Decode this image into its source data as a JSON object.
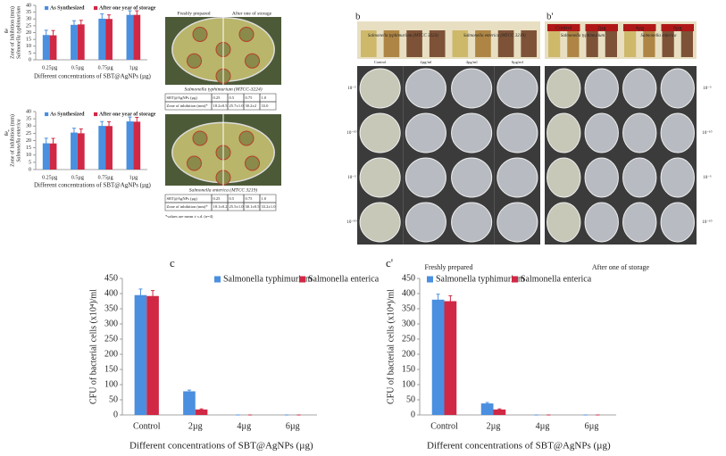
{
  "chart_data": [
    {
      "type": "bar",
      "panel": "a",
      "ylabel_lines": [
        "Zone of Inhibition (mm)",
        "Salmonella typhimurium"
      ],
      "xlabel": "Different concentrations of SBT@AgNPs (µg)",
      "categories": [
        "0.25µg",
        "0.5µg",
        "0.75µg",
        "1µg"
      ],
      "series": [
        {
          "name": "As Synthesized",
          "color": "#4a8fe0",
          "values": [
            18.2,
            25.7,
            30.2,
            33.0
          ],
          "errors": [
            3.5,
            3,
            3.5,
            3
          ]
        },
        {
          "name": "After one year of storage",
          "color": "#d02845",
          "values": [
            18,
            26,
            30,
            33
          ],
          "errors": [
            3.5,
            3,
            3,
            3
          ]
        }
      ],
      "ylim": [
        0,
        40
      ],
      "yticks": [
        0,
        5,
        10,
        15,
        20,
        25,
        30,
        35,
        40
      ]
    },
    {
      "type": "bar",
      "panel": "a'",
      "ylabel_lines": [
        "Zone of Inhibition (mm)",
        "Salmonella enterica"
      ],
      "xlabel": "Different concentrations of SBT@AgNPs (µg)",
      "categories": [
        "0.25µg",
        "0.5µg",
        "0.75µg",
        "1µg"
      ],
      "series": [
        {
          "name": "As Synthesized",
          "color": "#4a8fe0",
          "values": [
            18.1,
            25.5,
            30.1,
            33.2
          ],
          "errors": [
            3.5,
            3,
            3,
            3
          ]
        },
        {
          "name": "After one year of storage",
          "color": "#d02845",
          "values": [
            18,
            25,
            30,
            33
          ],
          "errors": [
            3.5,
            3,
            3,
            3
          ]
        }
      ],
      "ylim": [
        0,
        40
      ],
      "yticks": [
        0,
        5,
        10,
        15,
        20,
        25,
        30,
        35,
        40
      ]
    },
    {
      "type": "bar",
      "panel": "c",
      "ylabel_lines": [
        "CFU of bacterial cells (x10⁴)/ml"
      ],
      "xlabel": "Different concentrations of SBT@AgNPs (µg)",
      "categories": [
        "Control",
        "2µg",
        "4µg",
        "6µg"
      ],
      "series": [
        {
          "name": "Salmonella typhimurium",
          "color": "#4a8fe0",
          "values": [
            395,
            78,
            0,
            0
          ],
          "errors": [
            20,
            4,
            0,
            0
          ]
        },
        {
          "name": "Salmonella enterica",
          "color": "#d02845",
          "values": [
            392,
            18,
            0,
            0
          ],
          "errors": [
            18,
            2,
            0,
            0
          ]
        }
      ],
      "ylim": [
        0,
        450
      ],
      "yticks": [
        0,
        50,
        100,
        150,
        200,
        250,
        300,
        350,
        400,
        450
      ]
    },
    {
      "type": "bar",
      "panel": "c'",
      "ylabel_lines": [
        "CFU of bacterial cells (x10⁴)/ml"
      ],
      "xlabel": "Different concentrations of SBT@AgNPs (µg)",
      "categories": [
        "Control",
        "2µg",
        "4µg",
        "6µg"
      ],
      "series": [
        {
          "name": "Salmonella typhimurium",
          "color": "#4a8fe0",
          "values": [
            380,
            38,
            0,
            0
          ],
          "errors": [
            18,
            3,
            0,
            0
          ]
        },
        {
          "name": "Salmonella enterica",
          "color": "#d02845",
          "values": [
            375,
            18,
            0,
            0
          ],
          "errors": [
            18,
            2,
            0,
            0
          ]
        }
      ],
      "ylim": [
        0,
        450
      ],
      "yticks": [
        0,
        50,
        100,
        150,
        200,
        250,
        300,
        350,
        400,
        450
      ]
    }
  ],
  "plate_headers": [
    "Freshly prepared",
    "After one of storage"
  ],
  "plate_captions": [
    "Salmonella typhimurium (MTCC-3224)",
    "Salmonella enterica (MTCC 3219)"
  ],
  "tables": [
    {
      "rows": [
        [
          "SBT@AgNPs (µg)",
          "0.25",
          "0.5",
          "0.75",
          "1.0"
        ],
        [
          "Zone of inhibition (mm)*",
          "18.2±0.5",
          "25.7±1.0",
          "30.2±2",
          "33.0"
        ]
      ]
    },
    {
      "rows": [
        [
          "SBT@AgNPs (µg)",
          "0.25",
          "0.5",
          "0.75",
          "1.0"
        ],
        [
          "Zone of inhibition (mm)*",
          "18.1±0.2",
          "25.5±1.0",
          "30.1±0.5",
          "33.2±1.0"
        ]
      ]
    }
  ],
  "note": "*values are mean ± s.d. (n=4)",
  "panel_b": {
    "label": "b",
    "strain_labels": [
      "Salmonella typhimurium (MTCC 3224)",
      "Salmonella enterica (MTCC 3219)"
    ],
    "tube_labels": [
      "Control",
      "2µg/ml",
      "4µg/ml",
      "6µg/ml"
    ],
    "row_labels": [
      "10⁻⁵",
      "10⁻¹⁰",
      "10⁻⁵",
      "10⁻¹⁰"
    ],
    "caption": "Freshly prepared"
  },
  "panel_b2": {
    "label": "b'",
    "strain_labels": [
      "Salmonella typhimurium",
      "Salmonella enterica"
    ],
    "tube_labels": [
      "Control",
      "2µg",
      "4µg",
      "6µg"
    ],
    "row_labels": [
      "10⁻⁵",
      "10⁻¹⁰",
      "10⁻⁵",
      "10⁻¹⁰"
    ],
    "caption": "After one of storage"
  }
}
